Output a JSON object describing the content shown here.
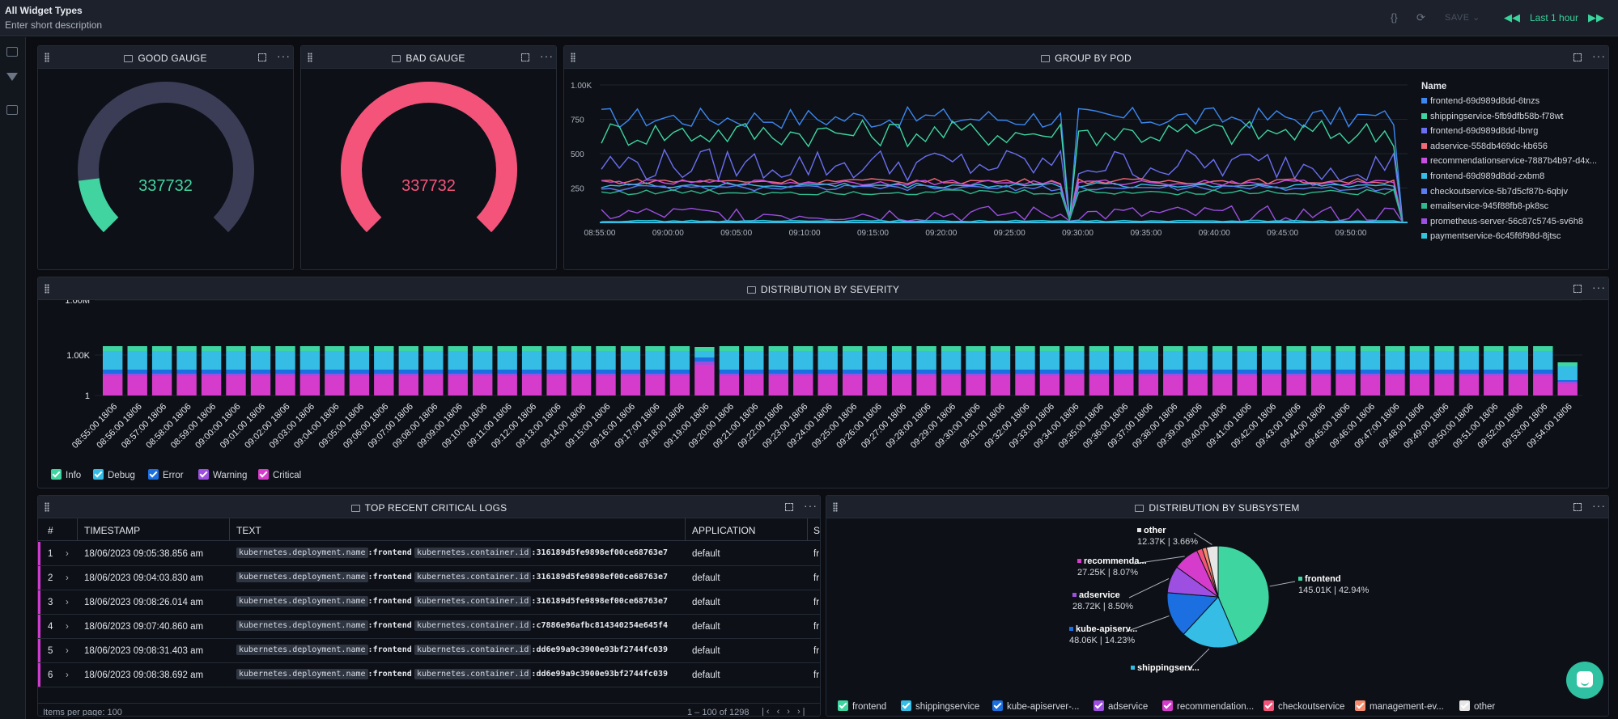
{
  "dashboard": {
    "title": "All Widget Types",
    "subtitle": "Enter short description",
    "save_label": "SAVE",
    "time_range": "Last 1 hour",
    "icons": [
      "code-icon",
      "refresh-icon",
      "rewind-icon",
      "fast-forward-icon"
    ]
  },
  "colors": {
    "accent": "#3ad39c",
    "good": "#41d3a0",
    "bad": "#f4547a",
    "info": "#3ed5a0",
    "debug": "#35bde6",
    "error": "#1b6fe0",
    "warning": "#9c4fe0",
    "critical": "#d63ccc"
  },
  "widgets": {
    "good_gauge": {
      "title": "GOOD GAUGE",
      "value": "337732",
      "fill_fraction": 0.14
    },
    "bad_gauge": {
      "title": "BAD GAUGE",
      "value": "337732",
      "fill_fraction": 1.0
    },
    "group_by_pod": {
      "title": "GROUP BY POD",
      "legend_title": "Name"
    },
    "severity": {
      "title": "DISTRIBUTION BY SEVERITY"
    },
    "logs": {
      "title": "TOP RECENT CRITICAL LOGS",
      "columns": [
        "#",
        "TIMESTAMP",
        "TEXT",
        "APPLICATION",
        "S"
      ],
      "key1": "kubernetes.deployment.name",
      "key2": "kubernetes.container.id",
      "rows": [
        {
          "num": "1",
          "timestamp": "18/06/2023 09:05:38.856 am",
          "value1": ":frontend",
          "value2": ":316189d5fe9898ef00ce68763e7",
          "application": "default",
          "s": "fr"
        },
        {
          "num": "2",
          "timestamp": "18/06/2023 09:04:03.830 am",
          "value1": ":frontend",
          "value2": ":316189d5fe9898ef00ce68763e7",
          "application": "default",
          "s": "fr"
        },
        {
          "num": "3",
          "timestamp": "18/06/2023 09:08:26.014 am",
          "value1": ":frontend",
          "value2": ":316189d5fe9898ef00ce68763e7",
          "application": "default",
          "s": "fr"
        },
        {
          "num": "4",
          "timestamp": "18/06/2023 09:07:40.860 am",
          "value1": ":frontend",
          "value2": ":c7886e96afbc814340254e645f4",
          "application": "default",
          "s": "fr"
        },
        {
          "num": "5",
          "timestamp": "18/06/2023 09:08:31.403 am",
          "value1": ":frontend",
          "value2": ":dd6e99a9c3900e93bf2744fc039",
          "application": "default",
          "s": "fr"
        },
        {
          "num": "6",
          "timestamp": "18/06/2023 09:08:38.692 am",
          "value1": ":frontend",
          "value2": ":dd6e99a9c3900e93bf2744fc039",
          "application": "default",
          "s": "fr"
        }
      ],
      "items_per_page": "Items per page: 100",
      "range": "1 – 100 of 1298"
    },
    "subsystem": {
      "title": "DISTRIBUTION BY SUBSYSTEM"
    }
  },
  "chart_data": [
    {
      "type": "line",
      "title": "GROUP BY POD",
      "x": [
        "08:55:00",
        "09:00:00",
        "09:05:00",
        "09:10:00",
        "09:15:00",
        "09:20:00",
        "09:25:00",
        "09:30:00",
        "09:35:00",
        "09:40:00",
        "09:45:00",
        "09:50:00"
      ],
      "ylim": [
        0,
        1000
      ],
      "yticks": [
        {
          "label": "1.00K",
          "value": 1000
        },
        {
          "label": "750",
          "value": 750
        },
        {
          "label": "500",
          "value": 500
        },
        {
          "label": "250",
          "value": 250
        }
      ],
      "series": [
        {
          "name": "frontend-69d989d8dd-6tnzs",
          "color": "#3c88f0",
          "level": 760,
          "noise": 80,
          "dip": true
        },
        {
          "name": "shippingservice-5fb9dfb58b-f78wt",
          "color": "#3ed5a0",
          "level": 650,
          "noise": 100,
          "dip": true
        },
        {
          "name": "frontend-69d989d8dd-lbnrg",
          "color": "#6a6ff0",
          "level": 420,
          "noise": 120,
          "dip": true
        },
        {
          "name": "adservice-558db469dc-kb656",
          "color": "#f26a7a",
          "level": 300,
          "noise": 20,
          "dip": true
        },
        {
          "name": "recommendationservice-7887b4b97-d4x...",
          "color": "#c84fe0",
          "level": 290,
          "noise": 20,
          "dip": true
        },
        {
          "name": "frontend-69d989d8dd-zxbm8",
          "color": "#35bde6",
          "level": 270,
          "noise": 20,
          "dip": true
        },
        {
          "name": "checkoutservice-5b7d5cf87b-6qbjv",
          "color": "#5b7cf0",
          "level": 250,
          "noise": 20,
          "dip": true
        },
        {
          "name": "emailservice-945f88fb8-pk8sc",
          "color": "#2fb98d",
          "level": 220,
          "noise": 20,
          "dip": true
        },
        {
          "name": "prometheus-server-56c87c5745-sv6h8",
          "color": "#9c4fe0",
          "level": 60,
          "noise": 60,
          "dip": false
        },
        {
          "name": "paymentservice-6c45f6f98d-8jtsc",
          "color": "#2ec6d8",
          "level": 10,
          "noise": 5,
          "dip": false
        }
      ]
    },
    {
      "type": "bar",
      "title": "DISTRIBUTION BY SEVERITY",
      "scale": "log",
      "yticks": [
        "1.00M",
        "1.00K",
        "1"
      ],
      "categories": [
        "08:55:00 18/06",
        "08:56:00 18/06",
        "08:57:00 18/06",
        "08:58:00 18/06",
        "08:59:00 18/06",
        "09:00:00 18/06",
        "09:01:00 18/06",
        "09:02:00 18/06",
        "09:03:00 18/06",
        "09:04:00 18/06",
        "09:05:00 18/06",
        "09:06:00 18/06",
        "09:07:00 18/06",
        "09:08:00 18/06",
        "09:09:00 18/06",
        "09:10:00 18/06",
        "09:11:00 18/06",
        "09:12:00 18/06",
        "09:13:00 18/06",
        "09:14:00 18/06",
        "09:15:00 18/06",
        "09:16:00 18/06",
        "09:17:00 18/06",
        "09:18:00 18/06",
        "09:19:00 18/06",
        "09:20:00 18/06",
        "09:21:00 18/06",
        "09:22:00 18/06",
        "09:23:00 18/06",
        "09:24:00 18/06",
        "09:25:00 18/06",
        "09:26:00 18/06",
        "09:27:00 18/06",
        "09:28:00 18/06",
        "09:29:00 18/06",
        "09:30:00 18/06",
        "09:31:00 18/06",
        "09:32:00 18/06",
        "09:33:00 18/06",
        "09:34:00 18/06",
        "09:35:00 18/06",
        "09:36:00 18/06",
        "09:37:00 18/06",
        "09:38:00 18/06",
        "09:39:00 18/06",
        "09:40:00 18/06",
        "09:41:00 18/06",
        "09:42:00 18/06",
        "09:43:00 18/06",
        "09:44:00 18/06",
        "09:45:00 18/06",
        "09:46:00 18/06",
        "09:47:00 18/06",
        "09:48:00 18/06",
        "09:49:00 18/06",
        "09:50:00 18/06",
        "09:51:00 18/06",
        "09:52:00 18/06",
        "09:53:00 18/06",
        "09:54:00 18/06"
      ],
      "series": [
        {
          "name": "Critical",
          "color": "#d63ccc"
        },
        {
          "name": "Warning",
          "color": "#9c4fe0"
        },
        {
          "name": "Error",
          "color": "#1b6fe0"
        },
        {
          "name": "Debug",
          "color": "#35bde6"
        },
        {
          "name": "Info",
          "color": "#3ed5a0"
        }
      ]
    },
    {
      "type": "pie",
      "title": "DISTRIBUTION BY SUBSYSTEM",
      "slices": [
        {
          "name": "frontend",
          "label": "frontend",
          "value": 145.01,
          "percent": 42.94,
          "color": "#3ed5a0",
          "display": "145.01K | 42.94%"
        },
        {
          "name": "shippingservice",
          "label": "shippingserv...",
          "value": 61.0,
          "percent": 18.0,
          "color": "#35bde6",
          "display": ""
        },
        {
          "name": "kube-apiserver-...",
          "label": "kube-apiserv...",
          "value": 48.06,
          "percent": 14.23,
          "color": "#1b6fe0",
          "display": "48.06K | 14.23%"
        },
        {
          "name": "adservice",
          "label": "adservice",
          "value": 28.72,
          "percent": 8.5,
          "color": "#9c4fe0",
          "display": "28.72K | 8.50%"
        },
        {
          "name": "recommendation...",
          "label": "recommenda...",
          "value": 27.25,
          "percent": 8.07,
          "color": "#d63ccc",
          "display": "27.25K | 8.07%"
        },
        {
          "name": "checkoutservice",
          "label": "",
          "value": 6.0,
          "percent": 1.8,
          "color": "#f4547a",
          "display": ""
        },
        {
          "name": "management-ev...",
          "label": "",
          "value": 4.5,
          "percent": 1.3,
          "color": "#f58a6c",
          "display": ""
        },
        {
          "name": "other",
          "label": "other",
          "value": 12.37,
          "percent": 3.66,
          "color": "#e6e6e6",
          "display": "12.37K | 3.66%"
        }
      ]
    }
  ]
}
